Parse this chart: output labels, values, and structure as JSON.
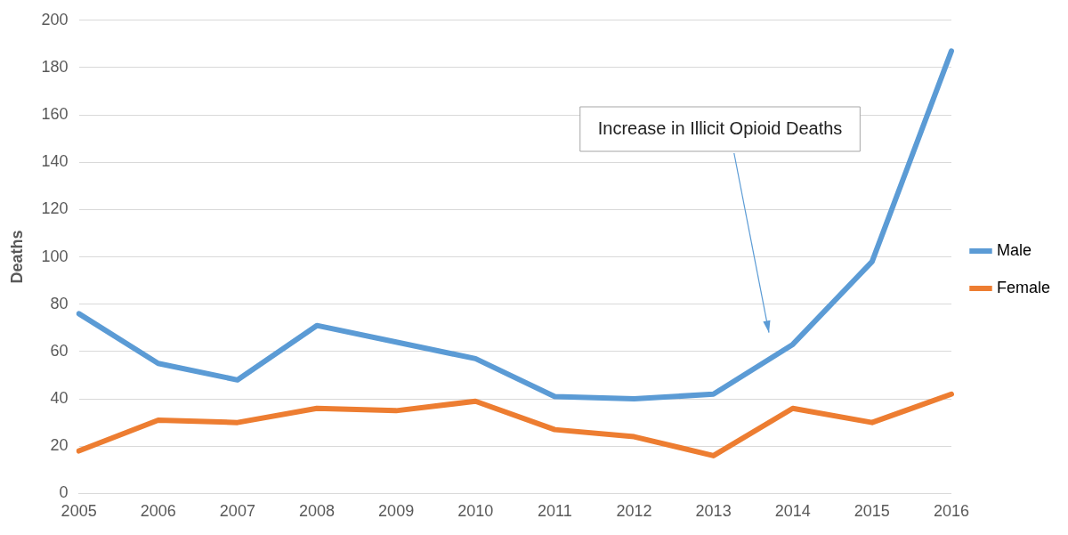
{
  "chart_data": {
    "type": "line",
    "ylabel": "Deaths",
    "categories": [
      "2005",
      "2006",
      "2007",
      "2008",
      "2009",
      "2010",
      "2011",
      "2012",
      "2013",
      "2014",
      "2015",
      "2016"
    ],
    "series": [
      {
        "name": "Male",
        "color": "#5b9bd5",
        "values": [
          76,
          55,
          48,
          71,
          64,
          57,
          41,
          40,
          42,
          63,
          98,
          187
        ]
      },
      {
        "name": "Female",
        "color": "#ed7d31",
        "values": [
          18,
          31,
          30,
          36,
          35,
          39,
          27,
          24,
          16,
          36,
          30,
          42
        ]
      }
    ],
    "ylim": [
      0,
      200
    ],
    "yticks": [
      0,
      20,
      40,
      60,
      80,
      100,
      120,
      140,
      160,
      180,
      200
    ],
    "grid": "y",
    "legend": "right",
    "marker": "none",
    "line_style": "solid",
    "annotations": [
      "Increase in Illicit Opioid Deaths"
    ]
  }
}
